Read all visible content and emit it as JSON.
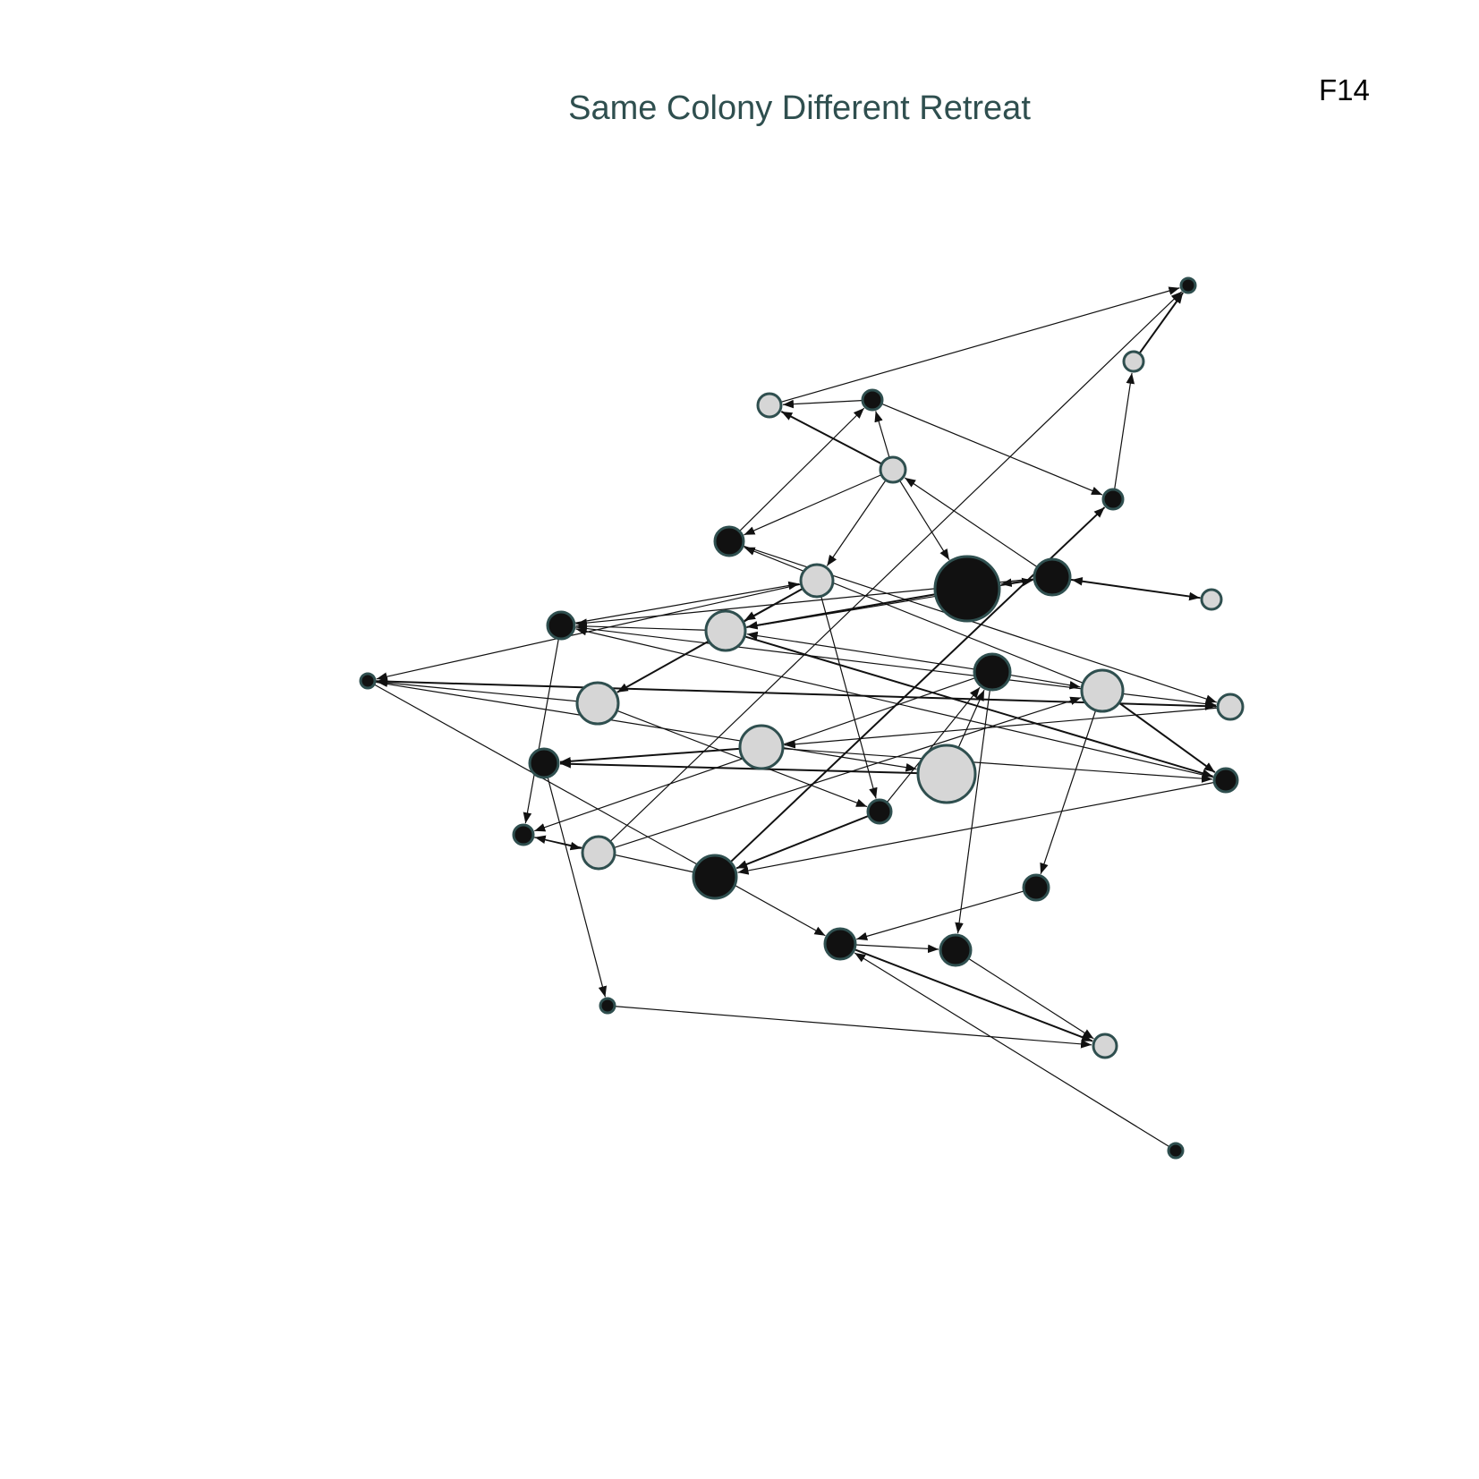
{
  "title": "Same Colony Different Retreat",
  "figure_label": "F14",
  "colors": {
    "dark": "#111111",
    "light": "#d6d6d6",
    "stroke": "#2f4f4f",
    "edge": "#111111"
  },
  "nodes": [
    {
      "id": "n1",
      "group": "dark"
    },
    {
      "id": "n2",
      "group": "light"
    },
    {
      "id": "n3",
      "group": "dark"
    },
    {
      "id": "n4",
      "group": "light"
    },
    {
      "id": "n5",
      "group": "dark"
    },
    {
      "id": "n6",
      "group": "light"
    },
    {
      "id": "n7",
      "group": "dark"
    },
    {
      "id": "n8",
      "group": "light"
    },
    {
      "id": "n9",
      "group": "dark"
    },
    {
      "id": "n10",
      "group": "dark"
    },
    {
      "id": "n11",
      "group": "light"
    },
    {
      "id": "n12",
      "group": "dark"
    },
    {
      "id": "n13",
      "group": "light"
    },
    {
      "id": "n14",
      "group": "dark"
    },
    {
      "id": "n15",
      "group": "light"
    },
    {
      "id": "n16",
      "group": "light"
    },
    {
      "id": "n17",
      "group": "dark"
    },
    {
      "id": "n18",
      "group": "light"
    },
    {
      "id": "n19",
      "group": "light"
    },
    {
      "id": "n20",
      "group": "dark"
    },
    {
      "id": "n21",
      "group": "dark"
    },
    {
      "id": "n22",
      "group": "dark"
    },
    {
      "id": "n23",
      "group": "light"
    },
    {
      "id": "n24",
      "group": "dark"
    },
    {
      "id": "n25",
      "group": "light"
    },
    {
      "id": "n26",
      "group": "dark"
    },
    {
      "id": "n27",
      "group": "dark"
    },
    {
      "id": "n28",
      "group": "dark"
    },
    {
      "id": "n29",
      "group": "dark"
    },
    {
      "id": "n30",
      "group": "dark"
    },
    {
      "id": "n31",
      "group": "light"
    },
    {
      "id": "n32",
      "group": "dark"
    }
  ],
  "edges": [
    [
      "n2",
      "n1"
    ],
    [
      "n3",
      "n2"
    ],
    [
      "n4",
      "n1"
    ],
    [
      "n5",
      "n4"
    ],
    [
      "n5",
      "n3"
    ],
    [
      "n6",
      "n4"
    ],
    [
      "n6",
      "n10"
    ],
    [
      "n6",
      "n11"
    ],
    [
      "n6",
      "n9"
    ],
    [
      "n6",
      "n5"
    ],
    [
      "n7",
      "n8"
    ],
    [
      "n7",
      "n6"
    ],
    [
      "n7",
      "n12"
    ],
    [
      "n7",
      "n9"
    ],
    [
      "n8",
      "n7"
    ],
    [
      "n9",
      "n13"
    ],
    [
      "n10",
      "n16"
    ],
    [
      "n10",
      "n5"
    ],
    [
      "n11",
      "n13"
    ],
    [
      "n11",
      "n17"
    ],
    [
      "n11",
      "n18"
    ],
    [
      "n11",
      "n22"
    ],
    [
      "n12",
      "n11"
    ],
    [
      "n12",
      "n16"
    ],
    [
      "n13",
      "n7"
    ],
    [
      "n13",
      "n20"
    ],
    [
      "n13",
      "n12"
    ],
    [
      "n14",
      "n15"
    ],
    [
      "n14",
      "n13"
    ],
    [
      "n15",
      "n10"
    ],
    [
      "n15",
      "n20"
    ],
    [
      "n15",
      "n27"
    ],
    [
      "n16",
      "n17"
    ],
    [
      "n16",
      "n19"
    ],
    [
      "n17",
      "n28"
    ],
    [
      "n17",
      "n16"
    ],
    [
      "n17",
      "n23"
    ],
    [
      "n18",
      "n17"
    ],
    [
      "n18",
      "n22"
    ],
    [
      "n19",
      "n20"
    ],
    [
      "n19",
      "n21"
    ],
    [
      "n20",
      "n12"
    ],
    [
      "n20",
      "n26"
    ],
    [
      "n21",
      "n30"
    ],
    [
      "n22",
      "n14"
    ],
    [
      "n23",
      "n21"
    ],
    [
      "n23",
      "n14"
    ],
    [
      "n24",
      "n25"
    ],
    [
      "n25",
      "n1"
    ],
    [
      "n12",
      "n24"
    ],
    [
      "n22",
      "n26"
    ],
    [
      "n26",
      "n24"
    ],
    [
      "n14",
      "n24"
    ],
    [
      "n28",
      "n29"
    ],
    [
      "n30",
      "n31"
    ],
    [
      "n28",
      "n31"
    ],
    [
      "n32",
      "n28"
    ],
    [
      "n14",
      "n29"
    ],
    [
      "n27",
      "n28"
    ],
    [
      "n29",
      "n31"
    ],
    [
      "n26",
      "n3"
    ],
    [
      "n25",
      "n15"
    ]
  ]
}
